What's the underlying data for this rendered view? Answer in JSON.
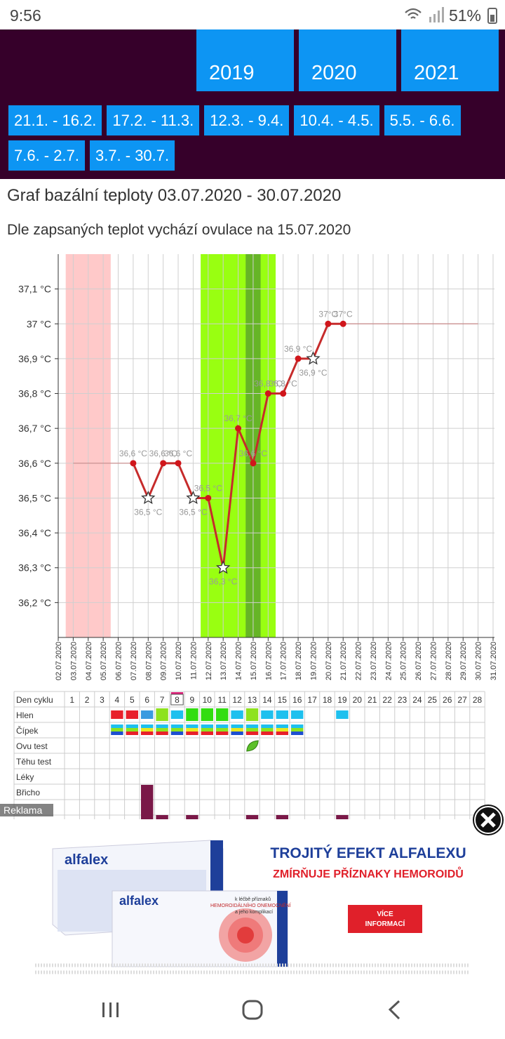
{
  "status_bar": {
    "time": "9:56",
    "battery": "51%"
  },
  "years": [
    "2019",
    "2020",
    "2021"
  ],
  "periods": [
    "21.1. - 16.2.",
    "17.2. - 11.3.",
    "12.3. - 9.4.",
    "10.4. - 4.5.",
    "5.5. - 6.6.",
    "7.6. - 2.7.",
    "3.7. - 30.7."
  ],
  "title": "Graf bazální teploty 03.07.2020 - 30.07.2020",
  "subtitle": "Dle zapsaných teplot vychází ovulace na 15.07.2020",
  "chart_data": {
    "type": "line",
    "categories": [
      "02.07.2020",
      "03.07.2020",
      "04.07.2020",
      "05.07.2020",
      "06.07.2020",
      "07.07.2020",
      "08.07.2020",
      "09.07.2020",
      "10.07.2020",
      "11.07.2020",
      "12.07.2020",
      "13.07.2020",
      "14.07.2020",
      "15.07.2020",
      "16.07.2020",
      "17.07.2020",
      "18.07.2020",
      "19.07.2020",
      "20.07.2020",
      "21.07.2020",
      "22.07.2020",
      "23.07.2020",
      "24.07.2020",
      "25.07.2020",
      "26.07.2020",
      "27.07.2020",
      "28.07.2020",
      "29.07.2020",
      "30.07.2020",
      "31.07.2020"
    ],
    "series": [
      {
        "color": "#c62b2b",
        "values": [
          null,
          null,
          null,
          null,
          null,
          36.6,
          36.5,
          36.6,
          36.6,
          36.5,
          36.5,
          36.3,
          36.7,
          36.6,
          36.8,
          36.8,
          36.9,
          36.9,
          37,
          37,
          null,
          null,
          null,
          null,
          null,
          null,
          null,
          null,
          null,
          null
        ],
        "value_labels": [
          null,
          null,
          null,
          null,
          null,
          "36,6 °C",
          "36,5 °C",
          "36,6 °C",
          "36,6 °C",
          "36,5 °C",
          "36,5 °C",
          "36,3 °C",
          "36,7 °C",
          "36,6 °C",
          "36,8 °C",
          "36,8 °C",
          "36,9 °C",
          "36,9 °C",
          "37°C",
          "37°C",
          null,
          null,
          null,
          null,
          null,
          null,
          null,
          null,
          null,
          null
        ],
        "markers": [
          null,
          null,
          null,
          null,
          null,
          "circle",
          "star",
          "circle",
          "circle",
          "star",
          "circle",
          "star",
          "circle",
          "circle",
          "circle",
          "circle",
          "circle",
          "star",
          "circle",
          "circle",
          null,
          null,
          null,
          null,
          null,
          null,
          null,
          null,
          null,
          null
        ]
      },
      {
        "color": "#c98a8a",
        "values": [
          null,
          36.6,
          36.6,
          36.6,
          36.6,
          36.6,
          null,
          null,
          null,
          null,
          null,
          null,
          null,
          null,
          null,
          null,
          null,
          null,
          null,
          37,
          37,
          37,
          37,
          37,
          37,
          37,
          37,
          37,
          37,
          null
        ]
      }
    ],
    "ylim": [
      36.1,
      37.2
    ],
    "yticks": [
      {
        "value": 36.2,
        "label": "36,2 °C"
      },
      {
        "value": 36.3,
        "label": "36,3 °C"
      },
      {
        "value": 36.4,
        "label": "36,4 °C"
      },
      {
        "value": 36.5,
        "label": "36,5 °C"
      },
      {
        "value": 36.6,
        "label": "36,6 °C"
      },
      {
        "value": 36.7,
        "label": "36,7 °C"
      },
      {
        "value": 36.8,
        "label": "36,8 °C"
      },
      {
        "value": 36.9,
        "label": "36,9 °C"
      },
      {
        "value": 37,
        "label": "37 °C"
      },
      {
        "value": 37.1,
        "label": "37,1 °C"
      }
    ],
    "grid": true,
    "bands": [
      {
        "from": "03.07.2020",
        "to": "05.07.2020",
        "color": "#ffc9c9"
      },
      {
        "from": "12.07.2020",
        "to": "16.07.2020",
        "color": "#99ff11"
      },
      {
        "from": "15.07.2020",
        "to": "15.07.2020",
        "color": "#66b526"
      }
    ]
  },
  "cycle_table": {
    "header": "Den cyklu",
    "days": [
      1,
      2,
      3,
      4,
      5,
      6,
      7,
      8,
      9,
      10,
      11,
      12,
      13,
      14,
      15,
      16,
      17,
      18,
      19,
      20,
      21,
      22,
      23,
      24,
      25,
      26,
      27,
      28
    ],
    "rows": [
      "Hlen",
      "Čípek",
      "Ovu test",
      "Těhu test",
      "Léky",
      "Břicho"
    ]
  },
  "ad": {
    "label": "Reklama",
    "headline": "TROJITÝ EFEKT ALFALEXU",
    "subheadline": "ZMÍRŇUJE PŘÍZNAKY HEMOROIDŮ",
    "button": [
      "VÍCE",
      "INFORMACÍ"
    ],
    "brand": "alfalex",
    "box_text": [
      "k léčbě příznaků",
      "HEMOROIDÁLNÍHO ONEMOCNĚNÍ",
      "a jeho komplikací"
    ]
  }
}
